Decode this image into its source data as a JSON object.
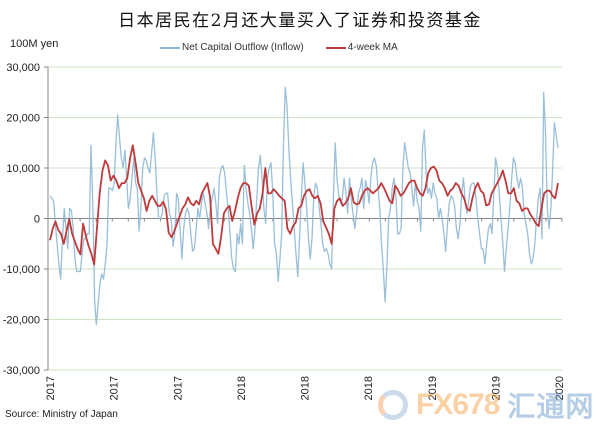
{
  "title": "日本居民在2月还大量买入了证券和投资基金",
  "unit_label": "100M yen",
  "source": "Source: Ministry of Japan",
  "watermark": {
    "brand": "FX678",
    "cn": "汇通网"
  },
  "legend": [
    {
      "label": "Net Capital  Outflow (Inflow)",
      "color": "#8fb8d4"
    },
    {
      "label": "4-week MA",
      "color": "#c0393b"
    }
  ],
  "chart_data": {
    "type": "line",
    "title": "日本居民在2月还大量买入了证券和投资基金",
    "xlabel": "",
    "ylabel": "100M yen",
    "ylim": [
      -30000,
      30000
    ],
    "yticks": [
      30000,
      20000,
      10000,
      0,
      -10000,
      -20000,
      -30000
    ],
    "ytick_labels": [
      "30,000",
      "20,000",
      "10,000",
      "0",
      "-10,000",
      "-20,000",
      "-30,000"
    ],
    "xtick_labels": [
      "2017",
      "2017",
      "2017",
      "2018",
      "2018",
      "2018",
      "2019",
      "2019",
      "2020"
    ],
    "grid": true,
    "legend_position": "top",
    "series": [
      {
        "name": "Net Capital  Outflow (Inflow)",
        "color": "#8fb8d4",
        "values": [
          4500,
          4000,
          3500,
          -1000,
          -5000,
          -9000,
          -12000,
          -4000,
          2000,
          -2000,
          -6000,
          2000,
          1500,
          -2000,
          -8000,
          -10500,
          -10500,
          -10500,
          -7000,
          -4000,
          -4000,
          -3000,
          -3000,
          14500,
          3000,
          -16000,
          -21000,
          -17000,
          -13000,
          -11000,
          -12000,
          -9000,
          -5000,
          6000,
          6000,
          5500,
          7000,
          15000,
          20500,
          16000,
          12000,
          10000,
          13500,
          8000,
          2000,
          4000,
          8000,
          12000,
          7000,
          6000,
          -2500,
          2000,
          10000,
          12000,
          11500,
          10000,
          9000,
          13000,
          17000,
          12000,
          5000,
          0,
          0,
          1000,
          4500,
          5000,
          5000,
          1000,
          0,
          -5500,
          -3000,
          5000,
          4000,
          -2000,
          -8000,
          -2000,
          1000,
          2000,
          1000,
          -3000,
          -6500,
          -6000,
          -2000,
          2000,
          0,
          3000,
          5000,
          3000,
          1000,
          -2000,
          2000,
          4000,
          6000,
          3000,
          -1000,
          8000,
          10000,
          10500,
          9000,
          5000,
          2000,
          -3000,
          -8000,
          -10000,
          -10500,
          -3000,
          -5000,
          -1000,
          -5000,
          10500,
          6000,
          3000,
          1000,
          -2000,
          -6000,
          -2000,
          4000,
          10000,
          12500,
          8000,
          2000,
          -1000,
          8000,
          10000,
          11000,
          5000,
          -5000,
          -7000,
          -12500,
          -8000,
          -3000,
          15000,
          26000,
          22000,
          14000,
          8000,
          3000,
          -2000,
          -7000,
          -11500,
          -4000,
          4000,
          11000,
          7000,
          2000,
          -4000,
          -8000,
          -4000,
          4500,
          7000,
          6000,
          2000,
          -1000,
          -5000,
          -6500,
          -6000,
          -7000,
          -9000,
          -10000,
          4000,
          15000,
          8000,
          4500,
          3000,
          4000,
          8000,
          5000,
          1000,
          8000,
          4000,
          1000,
          -2000,
          1000,
          5000,
          6000,
          8000,
          2000,
          7500,
          6000,
          3000,
          8000,
          11000,
          12000,
          10500,
          6000,
          2000,
          -5000,
          -10000,
          -16500,
          -9500,
          0,
          2000,
          6000,
          8000,
          5000,
          -3000,
          -3000,
          -2000,
          10000,
          15000,
          12500,
          10000,
          9000,
          6000,
          2500,
          7000,
          3500,
          2000,
          -2500,
          14000,
          17500,
          9000,
          5000,
          6000,
          4000,
          7000,
          5000,
          4000,
          0,
          2000,
          0,
          -3000,
          -6500,
          -1000,
          3000,
          4500,
          4000,
          2500,
          -2000,
          -4000,
          -1000,
          5000,
          8000,
          3000,
          1000,
          4000,
          6500,
          7000,
          7000,
          4000,
          0,
          -3000,
          -6000,
          -6000,
          -9000,
          -5000,
          -2000,
          -1000,
          -3000,
          5000,
          12000,
          10000,
          5000,
          0,
          -4500,
          -10500,
          -6000,
          -2000,
          2500,
          8000,
          12000,
          11000,
          8000,
          6000,
          8000,
          6000,
          1000,
          -1000,
          -3000,
          -7000,
          -9000,
          -8000,
          -5000,
          0,
          4000,
          6000,
          -4000,
          25000,
          17000,
          2000,
          -2000,
          2000,
          10000,
          19000,
          16500,
          14000
        ]
      },
      {
        "name": "4-week MA",
        "color": "#c0393b",
        "values": [
          -4300,
          -2000,
          -600,
          -2300,
          -3000,
          -5000,
          -2500,
          -100,
          -3000,
          -4500,
          -6000,
          -7100,
          -1000,
          -3500,
          -5500,
          -7000,
          -9100,
          -2000,
          5000,
          9500,
          11500,
          10500,
          7500,
          8500,
          7500,
          6000,
          7000,
          7000,
          8000,
          12000,
          14500,
          11000,
          7000,
          5500,
          4000,
          1500,
          3500,
          4500,
          3500,
          2500,
          2500,
          3300,
          1800,
          -2800,
          -3700,
          -2600,
          -1000,
          500,
          2000,
          2800,
          4200,
          3000,
          2600,
          3500,
          2800,
          5000,
          6000,
          7000,
          4300,
          -5000,
          -6000,
          -7000,
          -3500,
          1000,
          2000,
          2500,
          -500,
          1500,
          4000,
          6000,
          7000,
          7000,
          6500,
          2500,
          -1200,
          1000,
          2000,
          5000,
          10000,
          5000,
          5000,
          5800,
          5200,
          4500,
          4000,
          3500,
          -2000,
          -3000,
          -1500,
          -800,
          2000,
          2500,
          4500,
          5500,
          5800,
          4500,
          4000,
          4500,
          3000,
          -600,
          -1800,
          -3000,
          -5000,
          2000,
          3500,
          4000,
          2500,
          3000,
          4000,
          6000,
          3200,
          2800,
          3000,
          4500,
          5500,
          6000,
          5500,
          5000,
          5500,
          6000,
          7000,
          6000,
          4800,
          3500,
          3000,
          6500,
          5700,
          4500,
          5000,
          6000,
          7000,
          7500,
          7500,
          6000,
          5000,
          4500,
          6000,
          9000,
          10000,
          10300,
          9500,
          7500,
          7000,
          6000,
          4500,
          5500,
          6000,
          7000,
          6500,
          5000,
          4000,
          2000,
          1500,
          4000,
          6000,
          7000,
          5500,
          5000,
          2600,
          2800,
          5000,
          6000,
          7000,
          8000,
          9500,
          7500,
          5000,
          5000,
          6000,
          3500,
          3000,
          1500,
          2000,
          2000,
          800,
          0,
          -1000,
          -1500,
          2000,
          5000,
          5500,
          5500,
          4500,
          4000,
          7000
        ]
      }
    ]
  }
}
